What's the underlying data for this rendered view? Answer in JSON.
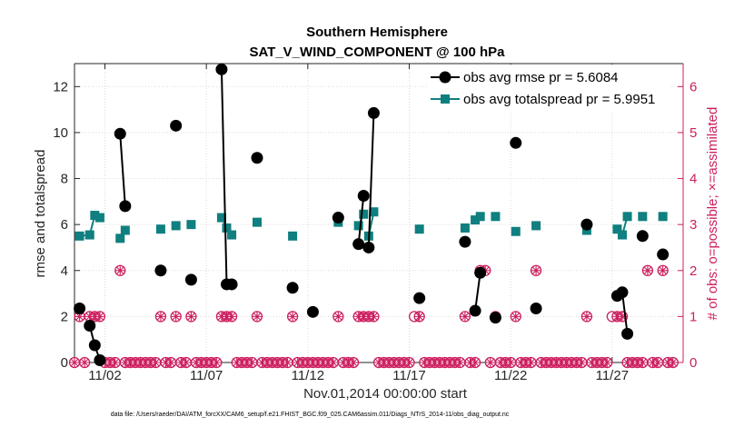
{
  "chart_data": {
    "type": "line",
    "title": "Southern Hemisphere",
    "subtitle": "SAT_V_WIND_COMPONENT @ 100 hPa",
    "xlabel": "Nov.01,2014 00:00:00 start",
    "ylabel": "rmse and totalspread",
    "y2label": "# of obs: o=possible; ×=assimilated",
    "footnote": "data file: /Users/raeder/DAI/ATM_forcXX/CAM6_setup/f.e21.FHIST_BGC.f09_025.CAM6assim.011/Diags_NTrS_2014-11/obs_diag_output.nc",
    "xlim": [
      0.5,
      30.5
    ],
    "ylim": [
      0,
      13
    ],
    "y2lim": [
      0,
      6.5
    ],
    "x_tick_values": [
      2,
      7,
      12,
      17,
      22,
      27
    ],
    "x_tick_labels": [
      "11/02",
      "11/07",
      "11/12",
      "11/17",
      "11/22",
      "11/27"
    ],
    "y_ticks": [
      0,
      2,
      4,
      6,
      8,
      10,
      12
    ],
    "y2_ticks": [
      0,
      1,
      2,
      3,
      4,
      5,
      6
    ],
    "colors": {
      "rmse": "#000000",
      "spread": "#0f7f7f",
      "obs": "#cc1f5f",
      "axis": "#262626"
    },
    "series": [
      {
        "name": "obs avg rmse pr = 5.6084",
        "segments": [
          [
            [
              0.75,
              2.35
            ]
          ],
          [
            [
              1.25,
              1.6
            ],
            [
              1.5,
              0.75
            ],
            [
              1.75,
              0.1
            ]
          ],
          [
            [
              2.75,
              9.95
            ],
            [
              3.0,
              6.8
            ]
          ],
          [
            [
              4.75,
              4.0
            ]
          ],
          [
            [
              5.5,
              10.3
            ]
          ],
          [
            [
              6.25,
              3.6
            ]
          ],
          [
            [
              7.75,
              12.75
            ],
            [
              8.0,
              3.4
            ],
            [
              8.25,
              3.4
            ]
          ],
          [
            [
              9.5,
              8.9
            ]
          ],
          [
            [
              11.25,
              3.25
            ]
          ],
          [
            [
              12.25,
              2.2
            ]
          ],
          [
            [
              13.5,
              6.3
            ]
          ],
          [
            [
              14.5,
              5.15
            ],
            [
              14.75,
              7.25
            ]
          ],
          [
            [
              15.0,
              5.0
            ],
            [
              15.25,
              10.85
            ]
          ],
          [
            [
              17.5,
              2.8
            ]
          ],
          [
            [
              19.75,
              5.25
            ]
          ],
          [
            [
              20.25,
              2.25
            ],
            [
              20.5,
              3.9
            ]
          ],
          [
            [
              21.25,
              1.95
            ]
          ],
          [
            [
              22.25,
              9.55
            ]
          ],
          [
            [
              23.25,
              2.35
            ]
          ],
          [
            [
              25.75,
              6.0
            ]
          ],
          [
            [
              27.25,
              2.9
            ],
            [
              27.5,
              3.05
            ],
            [
              27.75,
              1.25
            ]
          ],
          [
            [
              28.5,
              5.5
            ]
          ],
          [
            [
              29.5,
              4.7
            ]
          ]
        ]
      },
      {
        "name": "obs avg totalspread pr = 5.9951",
        "segments": [
          [
            [
              0.75,
              5.5
            ],
            [
              1.25,
              5.55
            ],
            [
              1.5,
              6.4
            ],
            [
              1.75,
              6.3
            ]
          ],
          [
            [
              2.75,
              5.4
            ],
            [
              3.0,
              5.75
            ]
          ],
          [
            [
              4.75,
              5.8
            ]
          ],
          [
            [
              5.5,
              5.95
            ]
          ],
          [
            [
              6.25,
              6.0
            ]
          ],
          [
            [
              7.75,
              6.3
            ],
            [
              8.0,
              5.85
            ],
            [
              8.25,
              5.55
            ]
          ],
          [
            [
              9.5,
              6.1
            ]
          ],
          [
            [
              11.25,
              5.5
            ]
          ],
          [
            [
              13.5,
              6.1
            ]
          ],
          [
            [
              14.5,
              5.95
            ],
            [
              14.75,
              6.45
            ]
          ],
          [
            [
              15.0,
              5.5
            ],
            [
              15.25,
              6.55
            ]
          ],
          [
            [
              17.5,
              5.8
            ]
          ],
          [
            [
              19.75,
              5.85
            ]
          ],
          [
            [
              20.25,
              6.2
            ],
            [
              20.5,
              6.35
            ]
          ],
          [
            [
              21.25,
              6.35
            ]
          ],
          [
            [
              22.25,
              5.7
            ]
          ],
          [
            [
              23.25,
              5.95
            ]
          ],
          [
            [
              25.75,
              5.75
            ]
          ],
          [
            [
              27.25,
              5.8
            ],
            [
              27.5,
              5.55
            ],
            [
              27.75,
              6.35
            ]
          ],
          [
            [
              28.5,
              6.35
            ]
          ],
          [
            [
              29.5,
              6.35
            ]
          ]
        ]
      }
    ],
    "obs_counts": [
      {
        "x": 0.5,
        "possible": 0,
        "assimilated": 0
      },
      {
        "x": 0.75,
        "possible": 1,
        "assimilated": 1
      },
      {
        "x": 1.0,
        "possible": 0,
        "assimilated": 0
      },
      {
        "x": 1.25,
        "possible": 1,
        "assimilated": 1
      },
      {
        "x": 1.5,
        "possible": 1,
        "assimilated": 1
      },
      {
        "x": 1.75,
        "possible": 1,
        "assimilated": 1
      },
      {
        "x": 2.0,
        "possible": 0,
        "assimilated": 0
      },
      {
        "x": 2.25,
        "possible": 0,
        "assimilated": 0
      },
      {
        "x": 2.5,
        "possible": 0,
        "assimilated": 0
      },
      {
        "x": 2.75,
        "possible": 2,
        "assimilated": 2
      },
      {
        "x": 3.0,
        "possible": 0,
        "assimilated": 0
      },
      {
        "x": 3.25,
        "possible": 0,
        "assimilated": 0
      },
      {
        "x": 3.5,
        "possible": 0,
        "assimilated": 0
      },
      {
        "x": 3.75,
        "possible": 0,
        "assimilated": 0
      },
      {
        "x": 4.0,
        "possible": 0,
        "assimilated": 0
      },
      {
        "x": 4.25,
        "possible": 0,
        "assimilated": 0
      },
      {
        "x": 4.5,
        "possible": 0,
        "assimilated": 0
      },
      {
        "x": 4.75,
        "possible": 1,
        "assimilated": 1
      },
      {
        "x": 5.0,
        "possible": 0,
        "assimilated": 0
      },
      {
        "x": 5.25,
        "possible": 0,
        "assimilated": 0
      },
      {
        "x": 5.5,
        "possible": 1,
        "assimilated": 1
      },
      {
        "x": 5.75,
        "possible": 0,
        "assimilated": 0
      },
      {
        "x": 6.0,
        "possible": 0,
        "assimilated": 0
      },
      {
        "x": 6.25,
        "possible": 1,
        "assimilated": 1
      },
      {
        "x": 6.5,
        "possible": 0,
        "assimilated": 0
      },
      {
        "x": 6.75,
        "possible": 0,
        "assimilated": 0
      },
      {
        "x": 7.0,
        "possible": 0,
        "assimilated": 0
      },
      {
        "x": 7.25,
        "possible": 0,
        "assimilated": 0
      },
      {
        "x": 7.5,
        "possible": 0,
        "assimilated": 0
      },
      {
        "x": 7.75,
        "possible": 1,
        "assimilated": 1
      },
      {
        "x": 8.0,
        "possible": 1,
        "assimilated": 1
      },
      {
        "x": 8.25,
        "possible": 1,
        "assimilated": 1
      },
      {
        "x": 8.5,
        "possible": 0,
        "assimilated": 0
      },
      {
        "x": 8.75,
        "possible": 0,
        "assimilated": 0
      },
      {
        "x": 9.0,
        "possible": 0,
        "assimilated": 0
      },
      {
        "x": 9.25,
        "possible": 0,
        "assimilated": 0
      },
      {
        "x": 9.5,
        "possible": 1,
        "assimilated": 1
      },
      {
        "x": 9.75,
        "possible": 0,
        "assimilated": 0
      },
      {
        "x": 10.0,
        "possible": 0,
        "assimilated": 0
      },
      {
        "x": 10.25,
        "possible": 0,
        "assimilated": 0
      },
      {
        "x": 10.5,
        "possible": 0,
        "assimilated": 0
      },
      {
        "x": 10.75,
        "possible": 0,
        "assimilated": 0
      },
      {
        "x": 11.0,
        "possible": 0,
        "assimilated": 0
      },
      {
        "x": 11.25,
        "possible": 1,
        "assimilated": 1
      },
      {
        "x": 11.5,
        "possible": 0,
        "assimilated": 0
      },
      {
        "x": 11.75,
        "possible": 0,
        "assimilated": 0
      },
      {
        "x": 12.0,
        "possible": 0,
        "assimilated": 0
      },
      {
        "x": 12.25,
        "possible": 0,
        "assimilated": 0
      },
      {
        "x": 12.5,
        "possible": 0,
        "assimilated": 0
      },
      {
        "x": 12.75,
        "possible": 0,
        "assimilated": 0
      },
      {
        "x": 13.0,
        "possible": 0,
        "assimilated": 0
      },
      {
        "x": 13.25,
        "possible": 0,
        "assimilated": 0
      },
      {
        "x": 13.5,
        "possible": 1,
        "assimilated": 1
      },
      {
        "x": 13.75,
        "possible": 0,
        "assimilated": 0
      },
      {
        "x": 14.0,
        "possible": 0,
        "assimilated": 0
      },
      {
        "x": 14.25,
        "possible": 0,
        "assimilated": 0
      },
      {
        "x": 14.5,
        "possible": 1,
        "assimilated": 1
      },
      {
        "x": 14.75,
        "possible": 1,
        "assimilated": 1
      },
      {
        "x": 15.0,
        "possible": 1,
        "assimilated": 1
      },
      {
        "x": 15.25,
        "possible": 1,
        "assimilated": 1
      },
      {
        "x": 15.5,
        "possible": 0,
        "assimilated": 0
      },
      {
        "x": 15.75,
        "possible": 0,
        "assimilated": 0
      },
      {
        "x": 16.0,
        "possible": 0,
        "assimilated": 0
      },
      {
        "x": 16.25,
        "possible": 0,
        "assimilated": 0
      },
      {
        "x": 16.5,
        "possible": 0,
        "assimilated": 0
      },
      {
        "x": 16.75,
        "possible": 0,
        "assimilated": 0
      },
      {
        "x": 17.0,
        "possible": 0,
        "assimilated": 0
      },
      {
        "x": 17.25,
        "possible": 1,
        "assimilated": 0
      },
      {
        "x": 17.5,
        "possible": 1,
        "assimilated": 1
      },
      {
        "x": 17.75,
        "possible": 0,
        "assimilated": 0
      },
      {
        "x": 18.0,
        "possible": 0,
        "assimilated": 0
      },
      {
        "x": 18.25,
        "possible": 0,
        "assimilated": 0
      },
      {
        "x": 18.5,
        "possible": 0,
        "assimilated": 0
      },
      {
        "x": 18.75,
        "possible": 0,
        "assimilated": 0
      },
      {
        "x": 19.0,
        "possible": 0,
        "assimilated": 0
      },
      {
        "x": 19.25,
        "possible": 0,
        "assimilated": 0
      },
      {
        "x": 19.5,
        "possible": 0,
        "assimilated": 0
      },
      {
        "x": 19.75,
        "possible": 1,
        "assimilated": 1
      },
      {
        "x": 20.0,
        "possible": 0,
        "assimilated": 0
      },
      {
        "x": 20.25,
        "possible": 0,
        "assimilated": 0
      },
      {
        "x": 20.5,
        "possible": 2,
        "assimilated": 2
      },
      {
        "x": 20.75,
        "possible": 2,
        "assimilated": 2
      },
      {
        "x": 21.0,
        "possible": 0,
        "assimilated": 0
      },
      {
        "x": 21.25,
        "possible": 1,
        "assimilated": 1
      },
      {
        "x": 21.5,
        "possible": 0,
        "assimilated": 0
      },
      {
        "x": 21.75,
        "possible": 0,
        "assimilated": 0
      },
      {
        "x": 22.0,
        "possible": 0,
        "assimilated": 0
      },
      {
        "x": 22.25,
        "possible": 1,
        "assimilated": 1
      },
      {
        "x": 22.5,
        "possible": 0,
        "assimilated": 0
      },
      {
        "x": 22.75,
        "possible": 0,
        "assimilated": 0
      },
      {
        "x": 23.0,
        "possible": 0,
        "assimilated": 0
      },
      {
        "x": 23.25,
        "possible": 2,
        "assimilated": 2
      },
      {
        "x": 23.5,
        "possible": 0,
        "assimilated": 0
      },
      {
        "x": 23.75,
        "possible": 0,
        "assimilated": 0
      },
      {
        "x": 24.0,
        "possible": 0,
        "assimilated": 0
      },
      {
        "x": 24.25,
        "possible": 0,
        "assimilated": 0
      },
      {
        "x": 24.5,
        "possible": 0,
        "assimilated": 0
      },
      {
        "x": 24.75,
        "possible": 0,
        "assimilated": 0
      },
      {
        "x": 25.0,
        "possible": 0,
        "assimilated": 0
      },
      {
        "x": 25.25,
        "possible": 0,
        "assimilated": 0
      },
      {
        "x": 25.5,
        "possible": 0,
        "assimilated": 0
      },
      {
        "x": 25.75,
        "possible": 1,
        "assimilated": 1
      },
      {
        "x": 26.0,
        "possible": 0,
        "assimilated": 0
      },
      {
        "x": 26.25,
        "possible": 0,
        "assimilated": 0
      },
      {
        "x": 26.5,
        "possible": 0,
        "assimilated": 0
      },
      {
        "x": 26.75,
        "possible": 0,
        "assimilated": 0
      },
      {
        "x": 27.0,
        "possible": 1,
        "assimilated": 0
      },
      {
        "x": 27.25,
        "possible": 1,
        "assimilated": 1
      },
      {
        "x": 27.5,
        "possible": 1,
        "assimilated": 1
      },
      {
        "x": 27.75,
        "possible": 0,
        "assimilated": 0
      },
      {
        "x": 28.0,
        "possible": 0,
        "assimilated": 0
      },
      {
        "x": 28.25,
        "possible": 0,
        "assimilated": 0
      },
      {
        "x": 28.5,
        "possible": 0,
        "assimilated": 0
      },
      {
        "x": 28.75,
        "possible": 2,
        "assimilated": 2
      },
      {
        "x": 29.0,
        "possible": 0,
        "assimilated": 0
      },
      {
        "x": 29.25,
        "possible": 0,
        "assimilated": 0
      },
      {
        "x": 29.5,
        "possible": 2,
        "assimilated": 2
      },
      {
        "x": 29.75,
        "possible": 0,
        "assimilated": 0
      },
      {
        "x": 30.0,
        "possible": 0,
        "assimilated": 0
      }
    ]
  }
}
